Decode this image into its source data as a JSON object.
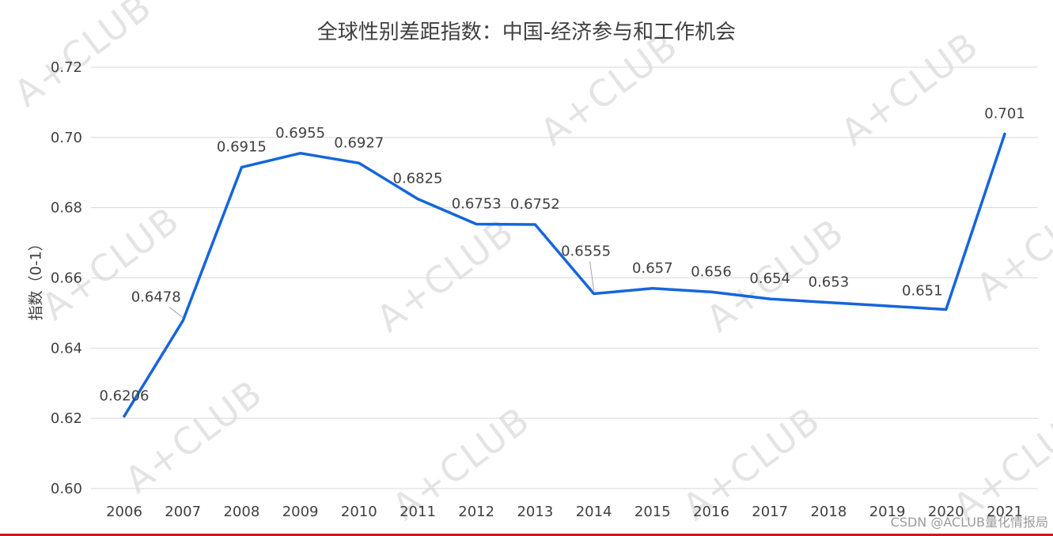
{
  "credit": "CSDN @ACLUB量化情报局",
  "watermark": {
    "text": "A+CLUB"
  },
  "colors": {
    "line": "#1565dc",
    "grid": "#d9d9d9",
    "text": "#404040",
    "leader": "#a6a6a6",
    "watermark": "#e4e4e4",
    "credit": "#9b9b9b",
    "bottom_bar": "#d01818"
  },
  "chart_data": {
    "type": "line",
    "title": "全球性别差距指数：中国-经济参与和工作机会",
    "xlabel": "",
    "ylabel": "指数（0-1）",
    "ylim": [
      0.6,
      0.72
    ],
    "grid": "horizontal",
    "legend": "none",
    "series_name": "中国-经济参与和工作机会指数",
    "yticks": [
      {
        "value": 0.6,
        "label": "0.60"
      },
      {
        "value": 0.62,
        "label": "0.62"
      },
      {
        "value": 0.64,
        "label": "0.64"
      },
      {
        "value": 0.66,
        "label": "0.66"
      },
      {
        "value": 0.68,
        "label": "0.68"
      },
      {
        "value": 0.7,
        "label": "0.70"
      },
      {
        "value": 0.72,
        "label": "0.72"
      }
    ],
    "categories": [
      "2006",
      "2007",
      "2008",
      "2009",
      "2010",
      "2011",
      "2012",
      "2013",
      "2014",
      "2015",
      "2016",
      "2017",
      "2018",
      "2019",
      "2020",
      "2021"
    ],
    "values": [
      0.6206,
      0.6478,
      0.6915,
      0.6955,
      0.6927,
      0.6825,
      0.6753,
      0.6752,
      0.6555,
      0.657,
      0.656,
      0.654,
      0.653,
      0.652,
      0.651,
      0.701
    ],
    "point_labels": [
      "0.6206",
      "0.6478",
      "0.6915",
      "0.6955",
      "0.6927",
      "0.6825",
      "0.6753",
      "0.6752",
      "0.6555",
      "0.657",
      "0.656",
      "0.654",
      "0.653",
      "",
      "0.651",
      "0.701"
    ],
    "label_offsets": {
      "1": {
        "dx": -34,
        "dy": -24,
        "leader": true
      },
      "8": {
        "dx": -10,
        "dy": -48,
        "leader": true
      },
      "14": {
        "dx": -30,
        "dy": -18
      }
    }
  }
}
